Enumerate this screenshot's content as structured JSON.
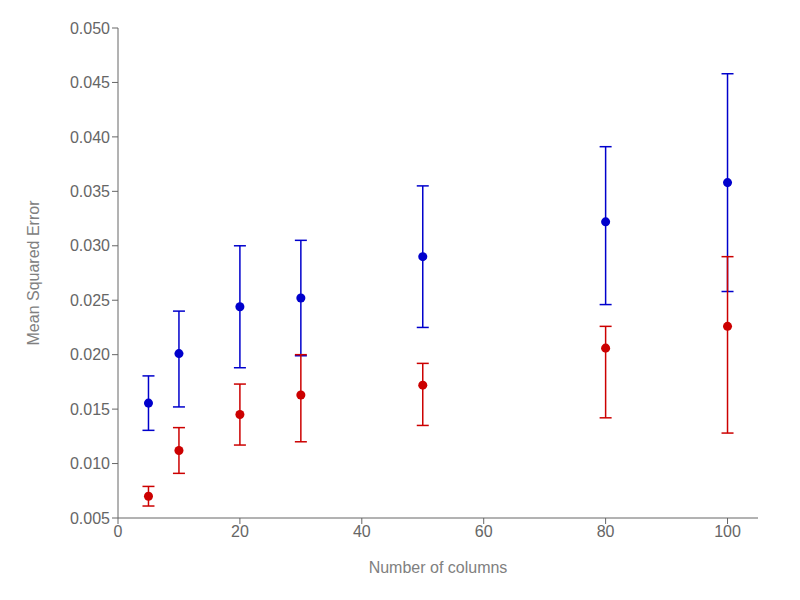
{
  "chart_data": {
    "type": "scatter",
    "xlabel": "Number of columns",
    "ylabel": "Mean Squared Error",
    "x": [
      5,
      10,
      20,
      30,
      50,
      80,
      100
    ],
    "series": [
      {
        "color": "#0000cc",
        "marker": "circle",
        "values": [
          0.01555,
          0.0201,
          0.0244,
          0.0252,
          0.029,
          0.0322,
          0.0358
        ],
        "yerr_lo": [
          0.0025,
          0.0049,
          0.0056,
          0.0053,
          0.0065,
          0.0076,
          0.01
        ],
        "yerr_hi": [
          0.0025,
          0.0039,
          0.0056,
          0.0053,
          0.0065,
          0.0069,
          0.01
        ]
      },
      {
        "color": "#cc0000",
        "marker": "circle",
        "values": [
          0.007,
          0.0112,
          0.0145,
          0.0163,
          0.0172,
          0.0206,
          0.0226
        ],
        "yerr_lo": [
          0.0009,
          0.0021,
          0.0028,
          0.0043,
          0.0037,
          0.0064,
          0.0098
        ],
        "yerr_hi": [
          0.0009,
          0.0021,
          0.0028,
          0.0037,
          0.002,
          0.002,
          0.0064
        ]
      }
    ],
    "xlim": [
      0,
      105
    ],
    "ylim": [
      0.005,
      0.05
    ],
    "xticks": [
      0,
      20,
      40,
      60,
      80,
      100
    ],
    "yticks": [
      0.005,
      {
        "value": 0.01,
        "label": "0.010"
      },
      0.015,
      {
        "value": 0.02,
        "label": "0.020"
      },
      0.025,
      {
        "value": 0.03,
        "label": "0.030"
      },
      0.035,
      {
        "value": 0.04,
        "label": "0.040"
      },
      0.045,
      {
        "value": 0.05,
        "label": "0.050"
      }
    ],
    "grid": false
  }
}
